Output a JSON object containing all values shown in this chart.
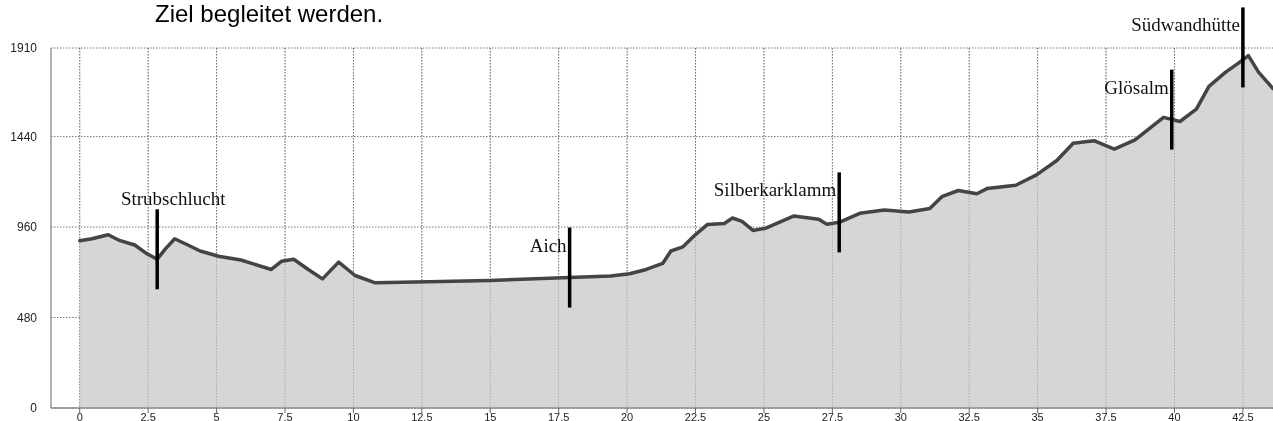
{
  "chart_data": {
    "type": "area",
    "annotations": [
      "Ziel begleitet werden.",
      {
        "text": "Strubschlucht",
        "x": 2.83,
        "y": 789
      },
      {
        "text": "Aich",
        "x": 17.9,
        "y": 692
      },
      {
        "text": "Silberkarklamm",
        "x": 27.75,
        "y": 985
      },
      {
        "text": "Glösalm",
        "x": 39.9,
        "y": 1530
      },
      {
        "text": "Südwandhütte",
        "x": 42.5,
        "y": 1860
      }
    ],
    "x": [
      0,
      0.45,
      1.04,
      1.42,
      2.01,
      2.46,
      2.83,
      3.13,
      3.47,
      3.95,
      4.4,
      5.07,
      5.89,
      7.0,
      7.38,
      7.82,
      8.35,
      8.87,
      9.46,
      10.06,
      10.8,
      12.74,
      14.97,
      17.9,
      19.4,
      20.09,
      20.7,
      21.3,
      21.6,
      22.04,
      22.5,
      22.94,
      23.55,
      23.85,
      24.2,
      24.6,
      25.05,
      26.1,
      27.0,
      27.3,
      27.75,
      28.5,
      29.4,
      30.3,
      31.06,
      31.5,
      32.1,
      32.78,
      33.15,
      34.2,
      34.96,
      35.7,
      36.3,
      37.06,
      37.8,
      38.56,
      39.6,
      40.2,
      40.8,
      41.26,
      41.87,
      42.3,
      42.7,
      43.07,
      43.6
    ],
    "series": [
      {
        "color": "#444444",
        "values": [
          887,
          898,
          919,
          891,
          865,
          818,
          789,
          844,
          898,
          865,
          833,
          805,
          785,
          735,
          779,
          789,
          735,
          685,
          774,
          703,
          664,
          670,
          677,
          692,
          700,
          712,
          735,
          767,
          833,
          855,
          920,
          974,
          979,
          1008,
          990,
          942,
          953,
          1019,
          1001,
          975,
          985,
          1033,
          1051,
          1040,
          1058,
          1121,
          1154,
          1137,
          1164,
          1182,
          1237,
          1313,
          1405,
          1418,
          1374,
          1422,
          1542,
          1520,
          1586,
          1706,
          1782,
          1826,
          1870,
          1782,
          1695
        ]
      }
    ],
    "xlim": [
      -1.05,
      43.6
    ],
    "ylim": [
      0,
      1910
    ],
    "xticks": [
      0,
      2.5,
      5,
      7.5,
      10,
      12.5,
      15,
      17.5,
      20,
      22.5,
      25,
      27.5,
      30,
      32.5,
      35,
      37.5,
      40,
      42.5
    ],
    "yticks": [
      0,
      480,
      960,
      1440,
      1910
    ],
    "grid": true
  }
}
